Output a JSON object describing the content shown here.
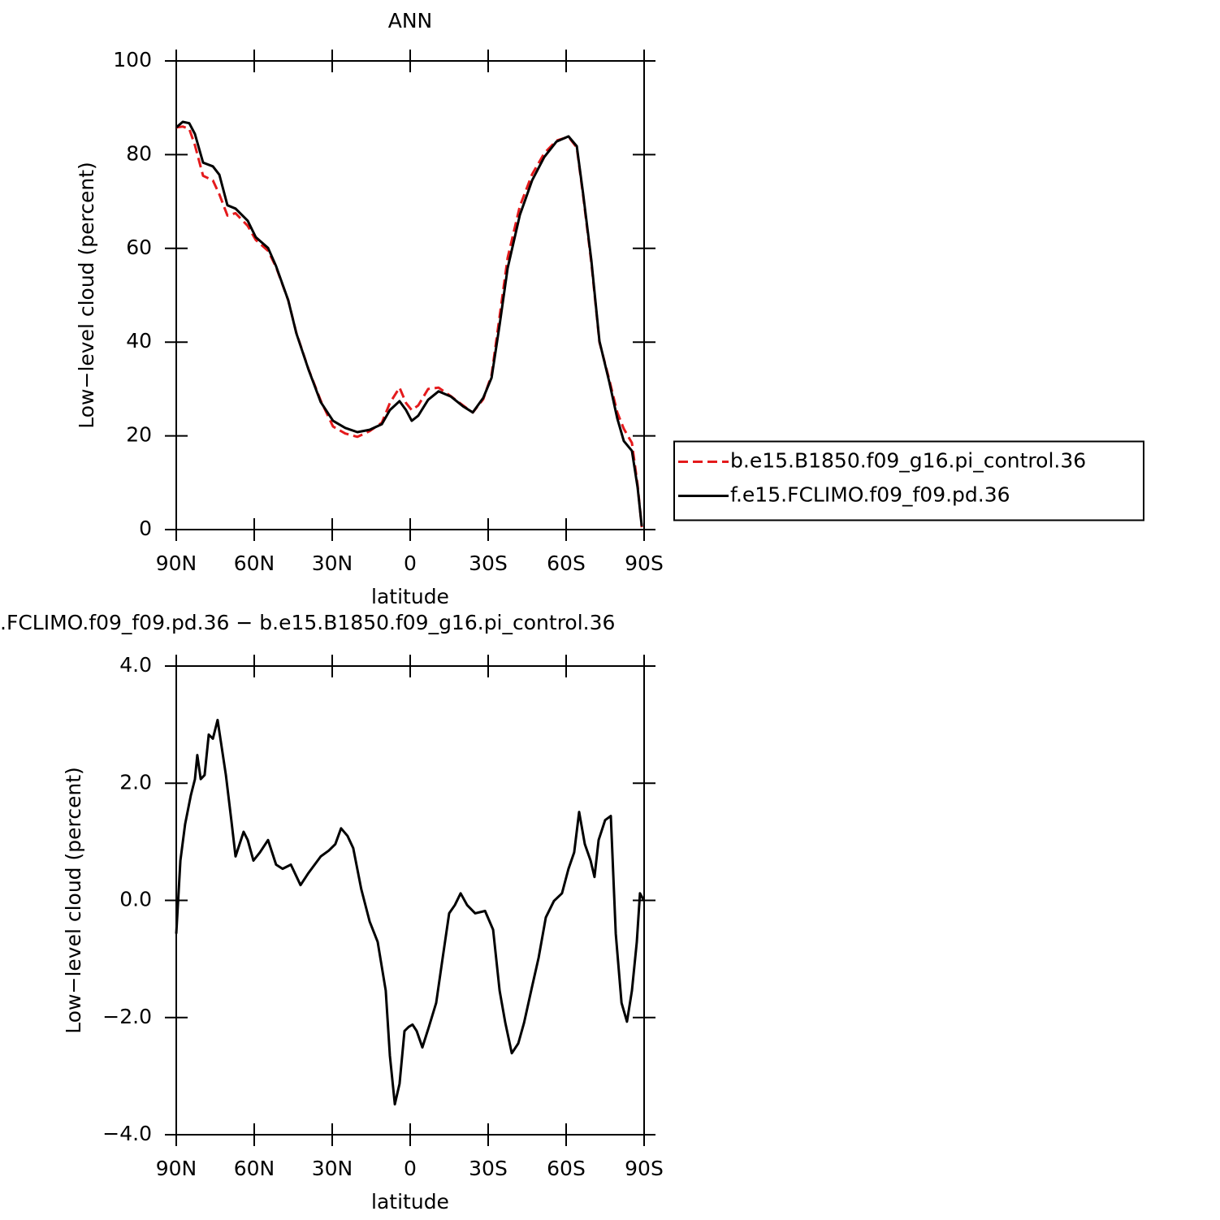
{
  "chart_data": [
    {
      "type": "line",
      "title": "ANN",
      "x_label": "latitude",
      "y_label": "Low−level cloud (percent)",
      "xlim": [
        90,
        -90
      ],
      "xticks": [
        {
          "value": 90,
          "label": "90N"
        },
        {
          "value": 60,
          "label": "60N"
        },
        {
          "value": 30,
          "label": "30N"
        },
        0,
        {
          "value": -30,
          "label": "30S"
        },
        {
          "value": -60,
          "label": "60S"
        },
        {
          "value": -90,
          "label": "90S"
        }
      ],
      "ylim": [
        0,
        100
      ],
      "yticks": [
        0,
        20,
        40,
        60,
        80,
        100
      ],
      "legend": "right",
      "x": [
        90,
        87.5,
        85,
        82.8,
        79.7,
        75.9,
        73.4,
        70.3,
        67.2,
        62.5,
        59.4,
        54.7,
        51.6,
        46.9,
        43.8,
        39.1,
        34.4,
        29.7,
        25,
        20.3,
        15.6,
        10.9,
        7.8,
        4.1,
        1.6,
        -0.6,
        -3.1,
        -6.9,
        -10.9,
        -15.6,
        -20.3,
        -24.1,
        -28.1,
        -31.3,
        -34.4,
        -37.5,
        -42.2,
        -46.9,
        -51.6,
        -56.3,
        -60.9,
        -64.1,
        -66.6,
        -69.7,
        -72.8,
        -76.6,
        -79.7,
        -82.2,
        -85.3,
        -87.5,
        -89.1
      ],
      "series": [
        {
          "name": "b.e15.B1850.f09_g16.pi_control.36",
          "color": "#e41a1c",
          "dashed": true,
          "values": [
            85.8,
            86.0,
            85.5,
            82.0,
            75.5,
            74.5,
            71.5,
            67.0,
            67.5,
            64.8,
            61.8,
            59.5,
            56.0,
            48.9,
            42.0,
            34.2,
            27.5,
            22.0,
            20.5,
            19.8,
            21.0,
            22.8,
            27.0,
            30.3,
            27.0,
            25.5,
            26.5,
            30.0,
            30.3,
            28.5,
            26.5,
            25.0,
            27.8,
            33.0,
            45.5,
            58.0,
            69.0,
            75.8,
            80.3,
            83.0,
            83.8,
            81.5,
            71.0,
            57.0,
            40.0,
            32.0,
            25.0,
            21.5,
            18.5,
            9.5,
            0.5
          ]
        },
        {
          "name": "f.e15.FCLIMO.f09_f09.pd.36",
          "color": "#000000",
          "dashed": false,
          "values": [
            85.8,
            87.0,
            86.7,
            84.4,
            78.3,
            77.5,
            75.7,
            69.2,
            68.5,
            65.9,
            62.4,
            60.1,
            56.2,
            48.9,
            41.9,
            34.1,
            27.2,
            23.2,
            21.7,
            20.8,
            21.3,
            22.5,
            25.5,
            27.4,
            25.5,
            23.2,
            24.3,
            27.7,
            29.5,
            28.4,
            26.3,
            25.0,
            28.1,
            32.4,
            43.7,
            55.8,
            67.1,
            74.5,
            79.5,
            82.8,
            83.9,
            81.8,
            71.4,
            57.5,
            40.2,
            31.5,
            23.7,
            18.9,
            16.8,
            9.0,
            0.7
          ]
        }
      ]
    },
    {
      "type": "line",
      "title": ".FCLIMO.f09_f09.pd.36 − b.e15.B1850.f09_g16.pi_control.36",
      "x_label": "latitude",
      "y_label": "Low−level cloud (percent)",
      "xlim": [
        90,
        -90
      ],
      "xticks": [
        {
          "value": 90,
          "label": "90N"
        },
        {
          "value": 60,
          "label": "60N"
        },
        {
          "value": 30,
          "label": "30N"
        },
        0,
        {
          "value": -30,
          "label": "30S"
        },
        {
          "value": -60,
          "label": "60S"
        },
        {
          "value": -90,
          "label": "90S"
        }
      ],
      "ylim": [
        -4,
        4
      ],
      "yticks": [
        {
          "value": -4,
          "label": "−4.0"
        },
        {
          "value": -2,
          "label": "−2.0"
        },
        {
          "value": 0,
          "label": "0.0"
        },
        {
          "value": 2,
          "label": "2.0"
        },
        {
          "value": 4,
          "label": "4.0"
        }
      ],
      "x": [
        90,
        88.4,
        86.6,
        84.4,
        82.8,
        81.9,
        80.6,
        79.1,
        77.5,
        75.9,
        74.1,
        70.9,
        68.8,
        67.2,
        64.1,
        62.5,
        60.3,
        57.8,
        54.7,
        51.6,
        49.1,
        45.9,
        42.2,
        39.1,
        34.4,
        31.3,
        28.8,
        26.6,
        24.1,
        21.9,
        18.8,
        15.6,
        12.5,
        9.4,
        7.8,
        5.9,
        4.1,
        2.2,
        0.6,
        -0.9,
        -2.5,
        -4.7,
        -7.2,
        -10,
        -12.5,
        -15,
        -17.2,
        -19.4,
        -21.9,
        -25,
        -28.8,
        -31.9,
        -34.4,
        -36.6,
        -39.1,
        -41.6,
        -43.8,
        -46.9,
        -49.4,
        -52.2,
        -55.3,
        -58.4,
        -60.9,
        -63.1,
        -65,
        -67.2,
        -69.4,
        -70.9,
        -72.5,
        -75,
        -77.2,
        -79.1,
        -81.3,
        -83.4,
        -85.3,
        -87.2,
        -88.4,
        -90
      ],
      "series": [
        {
          "color": "#000000",
          "dashed": false,
          "values": [
            -0.57,
            0.68,
            1.3,
            1.79,
            2.07,
            2.48,
            2.07,
            2.14,
            2.83,
            2.76,
            3.08,
            2.14,
            1.37,
            0.75,
            1.17,
            1.03,
            0.68,
            0.82,
            1.03,
            0.61,
            0.54,
            0.61,
            0.26,
            0.47,
            0.75,
            0.85,
            0.96,
            1.23,
            1.1,
            0.89,
            0.19,
            -0.36,
            -0.71,
            -1.54,
            -2.65,
            -3.48,
            -3.13,
            -2.23,
            -2.16,
            -2.12,
            -2.23,
            -2.51,
            -2.16,
            -1.75,
            -0.98,
            -0.22,
            -0.08,
            0.12,
            -0.08,
            -0.22,
            -0.18,
            -0.5,
            -1.54,
            -2.09,
            -2.61,
            -2.44,
            -2.09,
            -1.47,
            -0.98,
            -0.29,
            -0.01,
            0.12,
            0.54,
            0.82,
            1.51,
            0.96,
            0.68,
            0.4,
            1.03,
            1.37,
            1.44,
            -0.57,
            -1.75,
            -2.07,
            -1.54,
            -0.71,
            0.12,
            -0.01
          ]
        }
      ]
    }
  ]
}
